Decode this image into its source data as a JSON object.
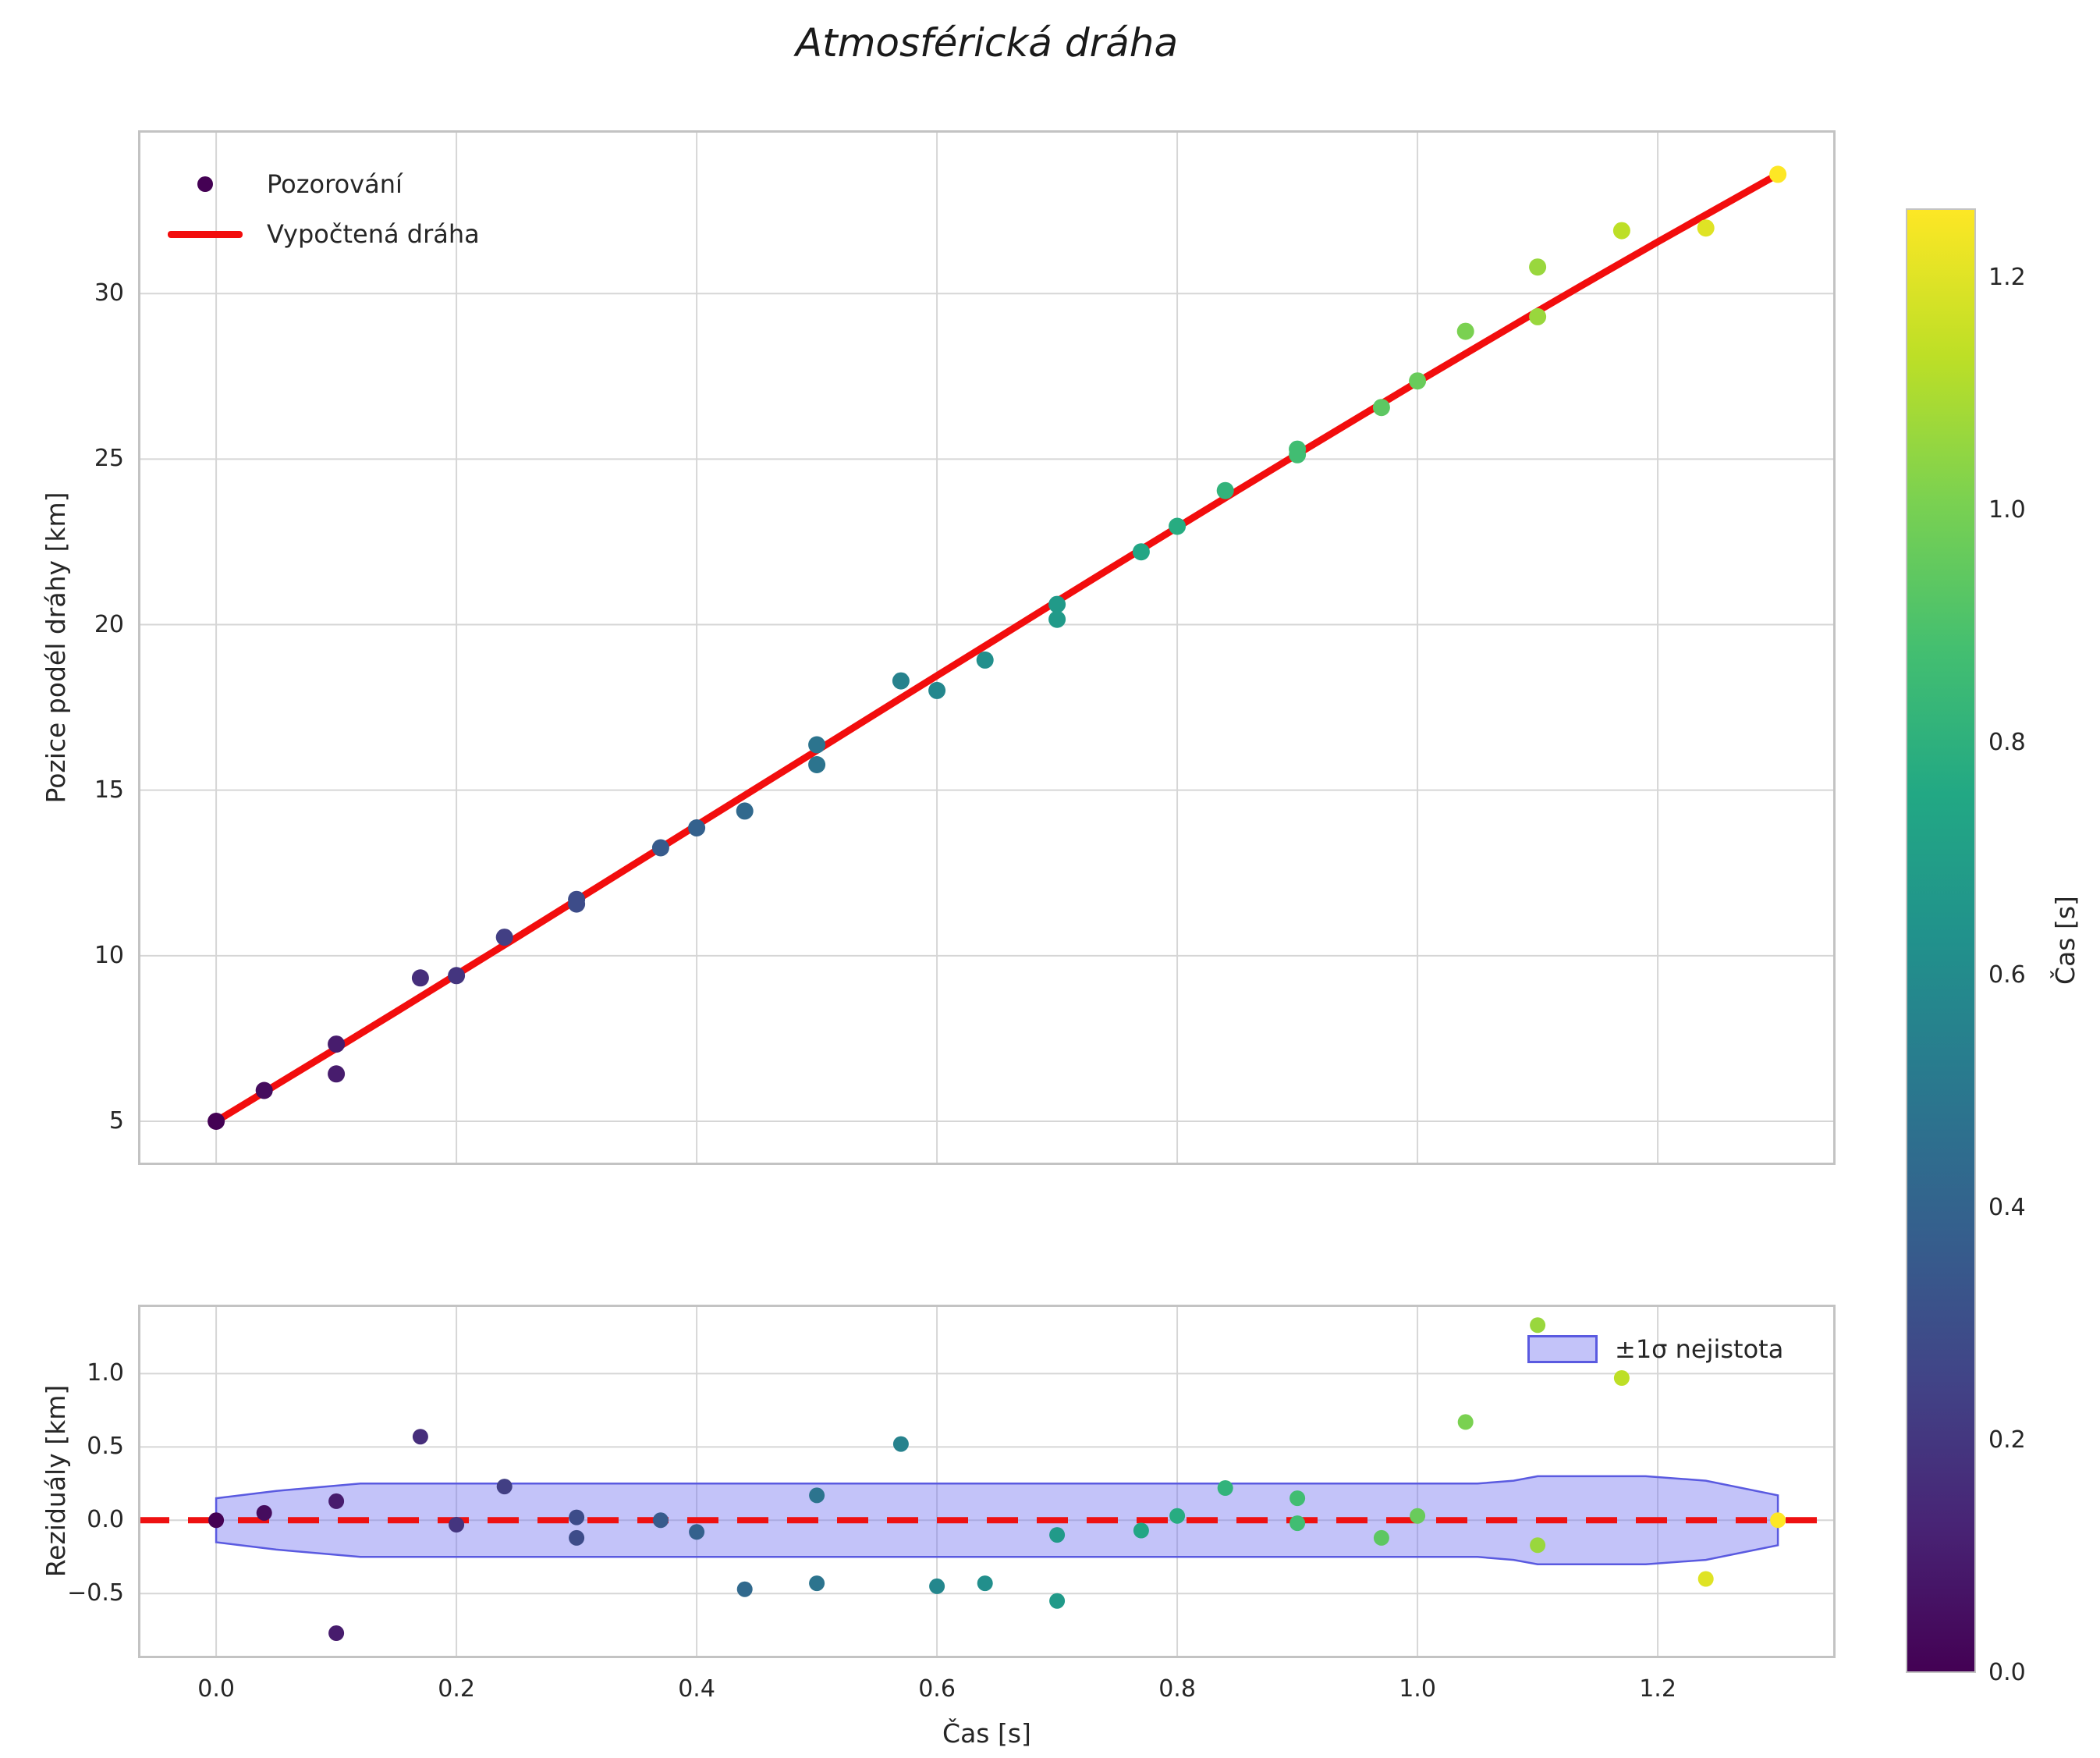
{
  "title": "Atmosférická dráha",
  "main_plot": {
    "ylabel": "Pozice podél dráhy [km]",
    "legend": {
      "observations": "Pozorování",
      "fit": "Vypočtená dráha"
    },
    "y_ticks": {
      "values": [
        5,
        10,
        15,
        20,
        25,
        30
      ],
      "labels": [
        "5",
        "10",
        "15",
        "20",
        "25",
        "30"
      ]
    },
    "x_gridline_values": [
      0.0,
      0.2,
      0.4,
      0.6,
      0.8,
      1.0,
      1.2
    ]
  },
  "residual_plot": {
    "ylabel": "Reziduály [km]",
    "xlabel": "Čas [s]",
    "legend": {
      "band": "±1σ nejistota"
    },
    "y_ticks": {
      "values": [
        -0.5,
        0.0,
        0.5,
        1.0
      ],
      "labels": [
        "−0.5",
        "0.0",
        "0.5",
        "1.0"
      ]
    },
    "x_ticks": {
      "values": [
        0.0,
        0.2,
        0.4,
        0.6,
        0.8,
        1.0,
        1.2
      ],
      "labels": [
        "0.0",
        "0.2",
        "0.4",
        "0.6",
        "0.8",
        "1.0",
        "1.2"
      ]
    }
  },
  "colorbar": {
    "label": "Čas [s]",
    "vmin": 0.0,
    "vmax": 1.26,
    "ticks": {
      "values": [
        0.0,
        0.2,
        0.4,
        0.6,
        0.8,
        1.0,
        1.2
      ],
      "labels": [
        "0.0",
        "0.2",
        "0.4",
        "0.6",
        "0.8",
        "1.0",
        "1.2"
      ]
    }
  },
  "colors": {
    "fit_line": "#f20d0d",
    "zero_line": "#ee1111",
    "band_fill": "rgba(112,112,240,0.42)",
    "band_edge": "#5a5ae0",
    "grid": "#d6d6d6",
    "spine": "#c3c3c3",
    "text": "#262626",
    "viridis_stops": [
      [
        0.0,
        "#440154"
      ],
      [
        0.1,
        "#482475"
      ],
      [
        0.2,
        "#414487"
      ],
      [
        0.3,
        "#355f8d"
      ],
      [
        0.4,
        "#2a788e"
      ],
      [
        0.5,
        "#21918c"
      ],
      [
        0.6,
        "#22a884"
      ],
      [
        0.7,
        "#44bf70"
      ],
      [
        0.8,
        "#7ad151"
      ],
      [
        0.9,
        "#bddf26"
      ],
      [
        1.0,
        "#fde725"
      ]
    ]
  },
  "chart_data": [
    {
      "type": "scatter",
      "title": "Atmosférická dráha",
      "xlabel": "Čas [s]",
      "ylabel": "Pozice podél dráhy [km]",
      "xlim": [
        -0.065,
        1.348
      ],
      "ylim": [
        3.68,
        34.93
      ],
      "grid": true,
      "legend_position": "upper left",
      "color_encoding": "point color = time t mapped through viridis colormap, t/1.3",
      "series": [
        {
          "name": "Pozorování",
          "type": "scatter",
          "points": [
            [
              0.0,
              5.0
            ],
            [
              0.04,
              5.93
            ],
            [
              0.1,
              7.33
            ],
            [
              0.1,
              6.43
            ],
            [
              0.17,
              9.33
            ],
            [
              0.2,
              9.4
            ],
            [
              0.24,
              10.56
            ],
            [
              0.3,
              11.7
            ],
            [
              0.3,
              11.56
            ],
            [
              0.37,
              13.26
            ],
            [
              0.4,
              13.86
            ],
            [
              0.44,
              14.37
            ],
            [
              0.5,
              16.37
            ],
            [
              0.5,
              15.77
            ],
            [
              0.57,
              18.3
            ],
            [
              0.6,
              18.01
            ],
            [
              0.64,
              18.93
            ],
            [
              0.7,
              20.61
            ],
            [
              0.7,
              20.16
            ],
            [
              0.77,
              22.2
            ],
            [
              0.8,
              22.97
            ],
            [
              0.84,
              24.05
            ],
            [
              0.9,
              25.3
            ],
            [
              0.9,
              25.13
            ],
            [
              0.97,
              26.56
            ],
            [
              1.0,
              27.36
            ],
            [
              1.04,
              28.86
            ],
            [
              1.1,
              30.8
            ],
            [
              1.1,
              29.3
            ],
            [
              1.17,
              31.9
            ],
            [
              1.24,
              31.98
            ],
            [
              1.3,
              33.6
            ]
          ]
        },
        {
          "name": "Vypočtená dráha",
          "type": "line",
          "points": [
            [
              0.0,
              5.0
            ],
            [
              0.05,
              6.1
            ],
            [
              0.1,
              7.2
            ],
            [
              0.15,
              8.31
            ],
            [
              0.2,
              9.43
            ],
            [
              0.25,
              10.55
            ],
            [
              0.3,
              11.68
            ],
            [
              0.35,
              12.81
            ],
            [
              0.4,
              13.94
            ],
            [
              0.45,
              15.07
            ],
            [
              0.5,
              16.2
            ],
            [
              0.55,
              17.33
            ],
            [
              0.6,
              18.46
            ],
            [
              0.65,
              19.58
            ],
            [
              0.7,
              20.71
            ],
            [
              0.75,
              21.83
            ],
            [
              0.8,
              22.94
            ],
            [
              0.85,
              24.05
            ],
            [
              0.9,
              25.15
            ],
            [
              0.95,
              26.24
            ],
            [
              1.0,
              27.33
            ],
            [
              1.05,
              28.4
            ],
            [
              1.1,
              29.47
            ],
            [
              1.15,
              30.52
            ],
            [
              1.2,
              31.56
            ],
            [
              1.25,
              32.58
            ],
            [
              1.3,
              33.6
            ]
          ]
        }
      ]
    },
    {
      "type": "scatter",
      "xlabel": "Čas [s]",
      "ylabel": "Reziduály [km]",
      "xlim": [
        -0.065,
        1.348
      ],
      "ylim": [
        -0.94,
        1.47
      ],
      "grid": true,
      "legend_position": "upper right",
      "series": [
        {
          "name": "residuals",
          "type": "scatter",
          "points": [
            [
              0.0,
              0.0
            ],
            [
              0.04,
              0.05
            ],
            [
              0.1,
              0.13
            ],
            [
              0.1,
              -0.77
            ],
            [
              0.17,
              0.57
            ],
            [
              0.2,
              -0.03
            ],
            [
              0.24,
              0.23
            ],
            [
              0.3,
              0.02
            ],
            [
              0.3,
              -0.12
            ],
            [
              0.37,
              0.0
            ],
            [
              0.4,
              -0.08
            ],
            [
              0.44,
              -0.47
            ],
            [
              0.5,
              0.17
            ],
            [
              0.5,
              -0.43
            ],
            [
              0.57,
              0.52
            ],
            [
              0.6,
              -0.45
            ],
            [
              0.64,
              -0.43
            ],
            [
              0.7,
              -0.1
            ],
            [
              0.7,
              -0.55
            ],
            [
              0.77,
              -0.07
            ],
            [
              0.8,
              0.03
            ],
            [
              0.84,
              0.22
            ],
            [
              0.9,
              0.15
            ],
            [
              0.9,
              -0.02
            ],
            [
              0.97,
              -0.12
            ],
            [
              1.0,
              0.03
            ],
            [
              1.04,
              0.67
            ],
            [
              1.1,
              1.33
            ],
            [
              1.1,
              -0.17
            ],
            [
              1.17,
              0.97
            ],
            [
              1.24,
              -0.4
            ],
            [
              1.3,
              0.0
            ]
          ]
        },
        {
          "name": "±1σ nejistota",
          "type": "band",
          "t": [
            0.0,
            0.05,
            0.12,
            0.3,
            0.6,
            0.9,
            1.05,
            1.08,
            1.1,
            1.19,
            1.24,
            1.3
          ],
          "sigma": [
            0.15,
            0.2,
            0.25,
            0.25,
            0.25,
            0.25,
            0.25,
            0.27,
            0.3,
            0.3,
            0.27,
            0.17
          ]
        },
        {
          "name": "zero-line",
          "type": "dashed-hline",
          "y": 0.0
        }
      ]
    }
  ]
}
